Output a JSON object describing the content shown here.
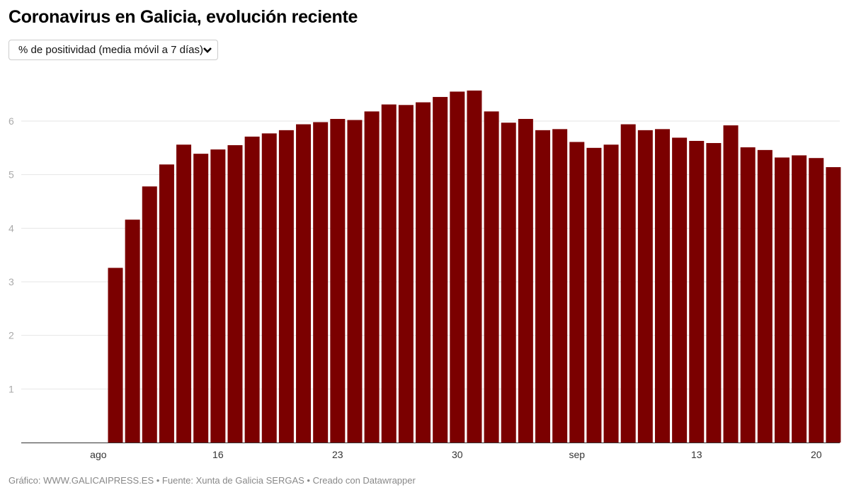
{
  "title": "Coronavirus en Galicia, evolución reciente",
  "dropdown": {
    "selected": "% de positividad (media móvil a 7 días)",
    "icon": "chevron-down-icon"
  },
  "footer": "Gráfico: WWW.GALICAIPRESS.ES • Fuente: Xunta de Galicia SERGAS • Creado con Datawrapper",
  "chart_data": {
    "type": "bar",
    "title": "Coronavirus en Galicia, evolución reciente",
    "bar_color": "#7b0000",
    "grid": true,
    "ylim": [
      0,
      6.6
    ],
    "yticks": [
      "1",
      "2",
      "3",
      "4",
      "5",
      "6"
    ],
    "xtick_labels": [
      "ago",
      "16",
      "23",
      "30",
      "sep",
      "13",
      "20"
    ],
    "xtick_dates": [
      "2020-08-09",
      "2020-08-16",
      "2020-08-23",
      "2020-08-30",
      "2020-09-06",
      "2020-09-13",
      "2020-09-20"
    ],
    "x_start": "2020-08-10",
    "x_end": "2020-09-21",
    "values": [
      3.26,
      4.16,
      4.78,
      5.19,
      5.56,
      5.39,
      5.47,
      5.55,
      5.71,
      5.77,
      5.83,
      5.94,
      5.98,
      6.04,
      6.02,
      6.18,
      6.31,
      6.3,
      6.35,
      6.45,
      6.55,
      6.57,
      6.18,
      5.97,
      6.04,
      5.83,
      5.85,
      5.61,
      5.5,
      5.56,
      5.94,
      5.83,
      5.85,
      5.69,
      5.63,
      5.59,
      5.92,
      5.51,
      5.46,
      5.32,
      5.36,
      5.31,
      5.14
    ]
  }
}
